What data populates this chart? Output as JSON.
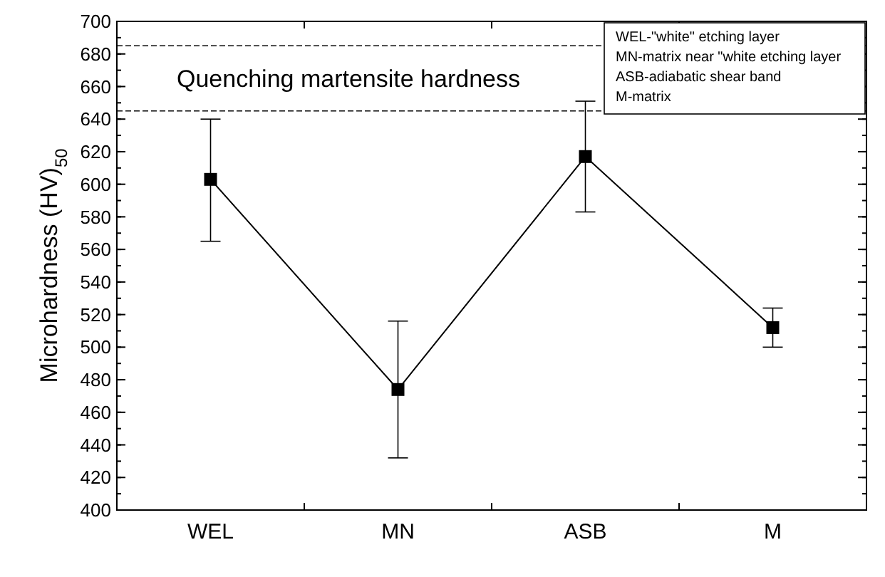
{
  "chart_data": {
    "type": "line",
    "ylabel": "Microhardness  (HV)$_{50}$",
    "categories": [
      "WEL",
      "MN",
      "ASB",
      "M"
    ],
    "series": [
      {
        "color": "#000000",
        "values": [
          603,
          474,
          617,
          512
        ],
        "errors": [
          [
            565,
            640
          ],
          [
            432,
            516
          ],
          [
            583,
            651
          ],
          [
            500,
            524
          ]
        ]
      }
    ],
    "ylim": [
      400,
      700
    ],
    "yticks": [
      400,
      420,
      440,
      460,
      480,
      500,
      520,
      540,
      560,
      580,
      600,
      620,
      640,
      660,
      680,
      700
    ],
    "marker": "square",
    "line_style": "solid",
    "grid": false,
    "ref_lines": [
      {
        "axis": "y",
        "value": 645,
        "line_style": "dashed",
        "color": "#000000"
      },
      {
        "axis": "y",
        "value": 685,
        "line_style": "dashed",
        "color": "#000000"
      }
    ],
    "annotations": [
      "Quenching martensite hardness",
      "WEL-\"white\" etching layer",
      "MN-matrix near \"white etching layer",
      "ASB-adiabatic shear band",
      "M-matrix"
    ]
  }
}
